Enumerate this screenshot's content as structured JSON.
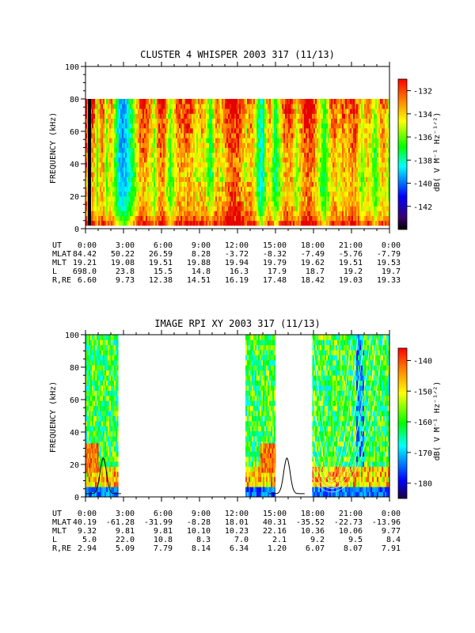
{
  "chart_data": [
    {
      "type": "heatmap",
      "title": "CLUSTER 4 WHISPER 2003 317 (11/13)",
      "ylabel": "FREQUENCY (kHz)",
      "ylim": [
        0,
        100
      ],
      "yticks": [
        "0",
        "20",
        "40",
        "60",
        "80",
        "100"
      ],
      "data_freq_range": [
        2,
        80
      ],
      "colorbar": {
        "label": "dB( V M⁻¹ Hz⁻¹ᐟ²)",
        "range": [
          -144,
          -131
        ],
        "ticks": [
          "-132",
          "-134",
          "-136",
          "-138",
          "-140",
          "-142"
        ]
      },
      "x_ticks": [
        "0:00",
        "3:00",
        "6:00",
        "9:00",
        "12:00",
        "15:00",
        "18:00",
        "21:00",
        "0:00"
      ],
      "ephemeris": [
        {
          "label": "UT",
          "values": [
            "0:00",
            "3:00",
            "6:00",
            "9:00",
            "12:00",
            "15:00",
            "18:00",
            "21:00",
            "0:00"
          ]
        },
        {
          "label": "MLAT",
          "values": [
            "84.42",
            "50.22",
            "26.59",
            "8.28",
            "-3.72",
            "-8.32",
            "-7.49",
            "-5.76",
            "-7.79"
          ]
        },
        {
          "label": "MLT",
          "values": [
            "19.21",
            "19.08",
            "19.51",
            "19.88",
            "19.94",
            "19.79",
            "19.62",
            "19.51",
            "19.53"
          ]
        },
        {
          "label": "L",
          "values": [
            "698.0",
            "23.8",
            "15.5",
            "14.8",
            "16.3",
            "17.9",
            "18.7",
            "19.2",
            "19.7"
          ]
        },
        {
          "label": "R,RE",
          "values": [
            "6.60",
            "9.73",
            "12.38",
            "14.51",
            "16.19",
            "17.48",
            "18.42",
            "19.03",
            "19.33"
          ]
        }
      ]
    },
    {
      "type": "heatmap",
      "title": "IMAGE RPI XY 2003 317 (11/13)",
      "ylabel": "FREQUENCY (kHz)",
      "ylim": [
        0,
        100
      ],
      "yticks": [
        "0",
        "20",
        "40",
        "60",
        "80",
        "100"
      ],
      "colorbar": {
        "label": "dB( V M⁻¹ Hz⁻¹ᐟ²)",
        "range": [
          -185,
          -136
        ],
        "ticks": [
          "-140",
          "-150",
          "-160",
          "-170",
          "-180"
        ]
      },
      "x_ticks": [
        "0:00",
        "3:00",
        "6:00",
        "9:00",
        "12:00",
        "15:00",
        "18:00",
        "21:00",
        "0:00"
      ],
      "data_gaps_hours": [
        [
          2.6,
          12.6
        ],
        [
          15.0,
          17.9
        ]
      ],
      "ephemeris": [
        {
          "label": "UT",
          "values": [
            "0:00",
            "3:00",
            "6:00",
            "9:00",
            "12:00",
            "15:00",
            "18:00",
            "21:00",
            "0:00"
          ]
        },
        {
          "label": "MLAT",
          "values": [
            "40.19",
            "-61.28",
            "-31.99",
            "-8.28",
            "18.01",
            "40.31",
            "-35.52",
            "-22.73",
            "-13.96"
          ]
        },
        {
          "label": "MLT",
          "values": [
            "9.32",
            "9.81",
            "9.81",
            "10.10",
            "10.23",
            "22.16",
            "10.36",
            "10.06",
            "9.77"
          ]
        },
        {
          "label": "L",
          "values": [
            "5.0",
            "22.0",
            "10.8",
            "8.3",
            "7.0",
            "2.1",
            "9.2",
            "9.5",
            "8.4"
          ]
        },
        {
          "label": "R,RE",
          "values": [
            "2.94",
            "5.09",
            "7.79",
            "8.14",
            "6.34",
            "1.20",
            "6.07",
            "8.07",
            "7.91"
          ]
        }
      ]
    }
  ]
}
